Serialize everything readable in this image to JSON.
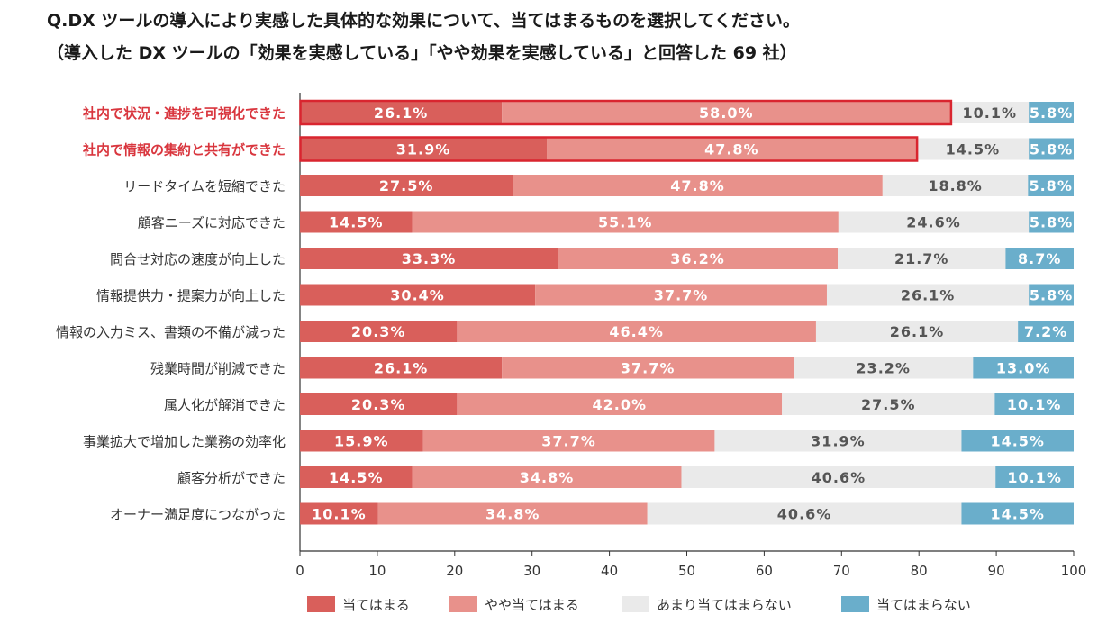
{
  "header": {
    "title": "Q.DX ツールの導入により実感した具体的な効果について、当てはまるものを選択してください。",
    "subtitle": "（導入した DX ツールの「効果を実感している」「やや効果を実感している」と回答した 69 社）"
  },
  "colors": {
    "atehamaru": "#d95f5b",
    "yaya": "#e8918b",
    "amari": "#eaeaea",
    "atehamaranai": "#6aaecb",
    "highlight_label": "#d9363e",
    "highlight_border": "#d9252f"
  },
  "chart_data": {
    "type": "bar",
    "orientation": "horizontal",
    "stacked": true,
    "xlim": [
      0,
      100
    ],
    "xticks": [
      0,
      10,
      20,
      30,
      40,
      50,
      60,
      70,
      80,
      90,
      100
    ],
    "grid": false,
    "legend": "bottom",
    "categories": [
      "社内で状況・進捗を可視化できた",
      "社内で情報の集約と共有ができた",
      "リードタイムを短縮できた",
      "顧客ニーズに対応できた",
      "問合せ対応の速度が向上した",
      "情報提供力・提案力が向上した",
      "情報の入力ミス、書類の不備が減った",
      "残業時間が削減できた",
      "属人化が解消できた",
      "事業拡大で増加した業務の効率化",
      "顧客分析ができた",
      "オーナー満足度につながった"
    ],
    "highlighted": [
      true,
      true,
      false,
      false,
      false,
      false,
      false,
      false,
      false,
      false,
      false,
      false
    ],
    "series": [
      {
        "name": "当てはまる",
        "values": [
          26.1,
          31.9,
          27.5,
          14.5,
          33.3,
          30.4,
          20.3,
          26.1,
          20.3,
          15.9,
          14.5,
          10.1
        ]
      },
      {
        "name": "やや当てはまる",
        "values": [
          58.0,
          47.8,
          47.8,
          55.1,
          36.2,
          37.7,
          46.4,
          37.7,
          42.0,
          37.7,
          34.8,
          34.8
        ]
      },
      {
        "name": "あまり当てはまらない",
        "values": [
          10.1,
          14.5,
          18.8,
          24.6,
          21.7,
          26.1,
          26.1,
          23.2,
          27.5,
          31.9,
          40.6,
          40.6
        ]
      },
      {
        "name": "当てはまらない",
        "values": [
          5.8,
          5.8,
          5.8,
          5.8,
          8.7,
          5.8,
          7.2,
          13.0,
          10.1,
          14.5,
          10.1,
          14.5
        ]
      }
    ]
  }
}
